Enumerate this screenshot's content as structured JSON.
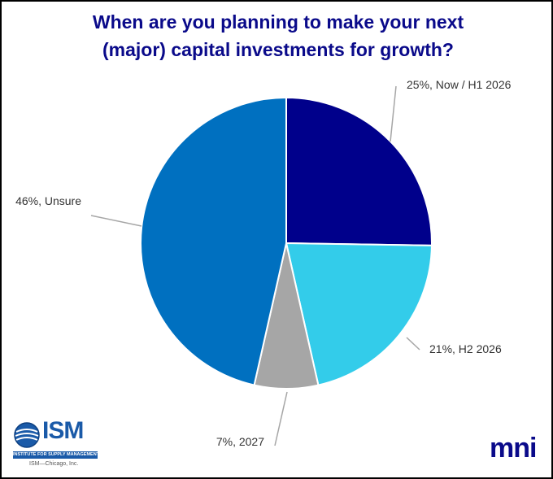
{
  "chart_data": {
    "type": "pie",
    "title_lines": [
      "When are you planning to make your next",
      "(major) capital investments for growth?"
    ],
    "slices": [
      {
        "label": "25%, Now / H1 2026",
        "value": 25,
        "color": "#00008b"
      },
      {
        "label": "21%, H2 2026",
        "value": 21,
        "color": "#33ccea"
      },
      {
        "label": "7%, 2027",
        "value": 7,
        "color": "#a6a6a6"
      },
      {
        "label": "46%, Unsure",
        "value": 46,
        "color": "#0070c0"
      }
    ],
    "start_angle_deg": 0,
    "direction": "clockwise",
    "label_placement": "outside-with-leader-lines"
  },
  "branding": {
    "ism_text": "ISM",
    "ism_tagline": "INSTITUTE FOR SUPPLY MANAGEMENT",
    "ism_chicago": "ISM—Chicago, Inc.",
    "mni_text": "mni",
    "ism_color": "#1a5aa8",
    "mni_color": "#0a0a8a"
  }
}
